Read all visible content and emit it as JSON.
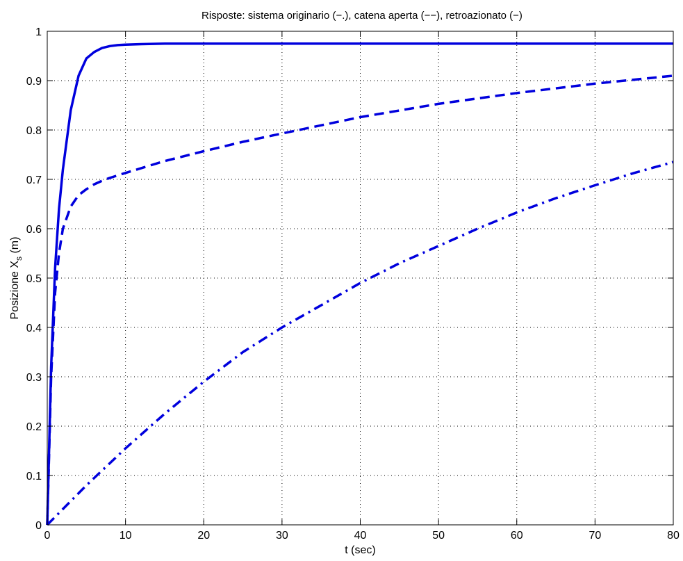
{
  "chart_data": {
    "type": "line",
    "title": "Risposte: sistema originario (−.), catena aperta (−−), retroazionato (−)",
    "xlabel": "t (sec)",
    "ylabel_main": "Posizione X",
    "ylabel_sub": "s",
    "ylabel_unit": " (m)",
    "xlim": [
      0,
      80
    ],
    "ylim": [
      0,
      1
    ],
    "xticks": [
      0,
      10,
      20,
      30,
      40,
      50,
      60,
      70,
      80
    ],
    "yticks": [
      0,
      0.1,
      0.2,
      0.3,
      0.4,
      0.5,
      0.6,
      0.7,
      0.8,
      0.9,
      1
    ],
    "grid": true,
    "color": "#0000dd",
    "series": [
      {
        "style": "solid",
        "x": [
          0,
          0.5,
          1,
          1.5,
          2,
          3,
          4,
          5,
          6,
          7,
          8,
          9,
          10,
          12,
          15,
          20,
          30,
          40,
          50,
          60,
          70,
          80
        ],
        "y": [
          0,
          0.32,
          0.52,
          0.64,
          0.72,
          0.84,
          0.91,
          0.945,
          0.958,
          0.966,
          0.97,
          0.972,
          0.973,
          0.974,
          0.975,
          0.975,
          0.975,
          0.975,
          0.975,
          0.975,
          0.975,
          0.975
        ]
      },
      {
        "style": "dashed",
        "x": [
          0,
          0.5,
          1,
          1.5,
          2,
          3,
          4,
          5,
          6,
          7,
          8,
          10,
          15,
          20,
          25,
          30,
          40,
          50,
          60,
          70,
          80
        ],
        "y": [
          0,
          0.3,
          0.47,
          0.55,
          0.6,
          0.645,
          0.668,
          0.68,
          0.69,
          0.697,
          0.703,
          0.713,
          0.737,
          0.757,
          0.776,
          0.793,
          0.826,
          0.853,
          0.875,
          0.894,
          0.91
        ]
      },
      {
        "style": "dashdot",
        "x": [
          0,
          5,
          10,
          15,
          20,
          25,
          30,
          35,
          40,
          45,
          50,
          55,
          60,
          65,
          70,
          75,
          80
        ],
        "y": [
          0,
          0.08,
          0.155,
          0.225,
          0.29,
          0.35,
          0.4,
          0.445,
          0.49,
          0.53,
          0.565,
          0.6,
          0.633,
          0.662,
          0.688,
          0.713,
          0.735
        ]
      }
    ]
  }
}
